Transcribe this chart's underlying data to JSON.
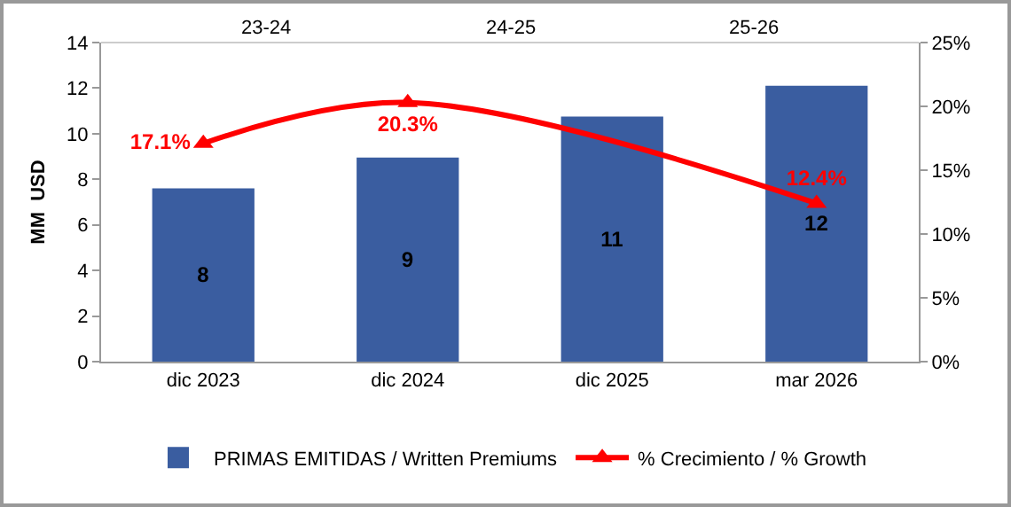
{
  "chart_data": {
    "type": "bar",
    "ylabel": "MM  USD",
    "categories": [
      "dic 2023",
      "dic 2024",
      "dic 2025",
      "mar 2026"
    ],
    "series": [
      {
        "name": "PRIMAS EMITIDAS / Written Premiums",
        "color": "#3a5da0",
        "values": [
          7.6,
          8.95,
          10.75,
          12.1
        ],
        "value_labels": [
          "8",
          "9",
          "11",
          "12"
        ]
      },
      {
        "name": "% Crecimiento / % Growth",
        "type": "line",
        "axis": "y2",
        "color": "#ff0000",
        "marker": "triangle",
        "values": [
          17.1,
          20.3,
          null,
          12.4
        ],
        "value_labels": [
          "17.1%",
          "20.3%",
          null,
          "12.4%"
        ]
      }
    ],
    "annotations": [
      "23-24",
      "24-25",
      "25-26"
    ],
    "ylim": [
      0,
      14
    ],
    "yticks": [
      0,
      2,
      4,
      6,
      8,
      10,
      12,
      14
    ],
    "y2lim": [
      0,
      25
    ],
    "y2ticks": [
      {
        "value": 0,
        "label": "0%"
      },
      {
        "value": 5,
        "label": "5%"
      },
      {
        "value": 10,
        "label": "10%"
      },
      {
        "value": 15,
        "label": "15%"
      },
      {
        "value": 20,
        "label": "20%"
      },
      {
        "value": 25,
        "label": "25%"
      }
    ],
    "grid": false,
    "legend": "bottom"
  }
}
